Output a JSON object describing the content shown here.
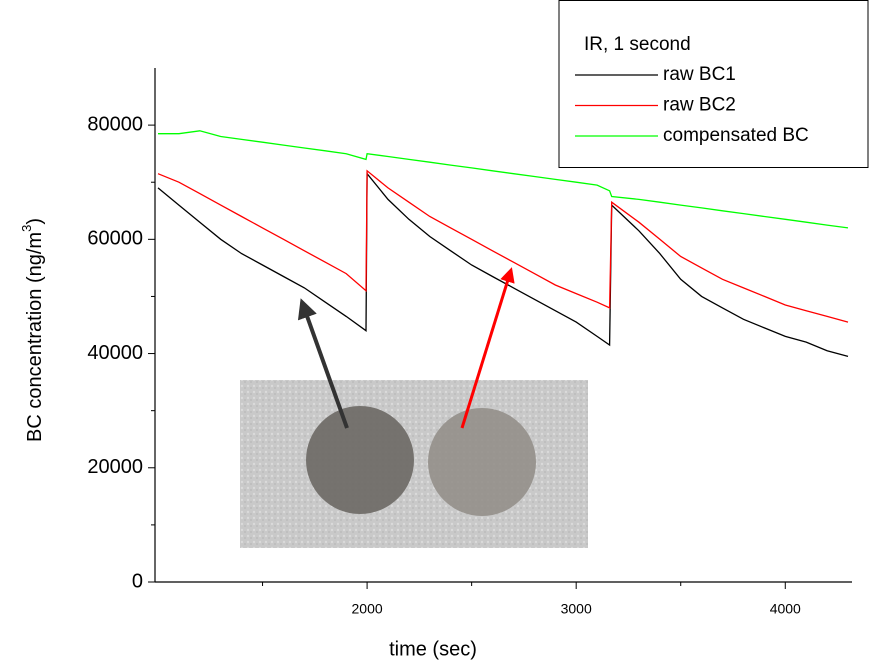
{
  "chart_data": {
    "type": "line",
    "x_label": "time (sec)",
    "y_label": {
      "text": "BC concentration (ng/m",
      "sup": "3",
      "end": ")"
    },
    "legend_title": "IR, 1 second",
    "legend": "top-right",
    "xlim": [
      1000,
      4300
    ],
    "ylim": [
      0,
      90000
    ],
    "xticks": [
      2000,
      3000,
      4000
    ],
    "xminorticks": [
      1500,
      2500,
      3500
    ],
    "yticks": [
      0,
      20000,
      40000,
      60000,
      80000
    ],
    "yminorticks": [
      10000,
      30000,
      50000,
      70000
    ],
    "x": [
      1000,
      1100,
      1200,
      1300,
      1400,
      1500,
      1600,
      1700,
      1800,
      1900,
      1995,
      2000,
      2100,
      2200,
      2300,
      2400,
      2500,
      2600,
      2700,
      2800,
      2900,
      3000,
      3100,
      3160,
      3170,
      3300,
      3400,
      3500,
      3600,
      3700,
      3800,
      3900,
      4000,
      4100,
      4200,
      4300
    ],
    "series": [
      {
        "name": "raw BC1",
        "color": "#000000",
        "values": [
          69000,
          66000,
          63000,
          60000,
          57500,
          55500,
          53500,
          51500,
          49000,
          46500,
          44000,
          71500,
          67000,
          63500,
          60500,
          58000,
          55500,
          53500,
          51500,
          49500,
          47500,
          45500,
          43000,
          41500,
          66000,
          61500,
          57500,
          53000,
          50000,
          48000,
          46000,
          44500,
          43000,
          42000,
          40500,
          39500
        ]
      },
      {
        "name": "raw BC2",
        "color": "#ff0000",
        "values": [
          71500,
          70000,
          68000,
          66000,
          64000,
          62000,
          60000,
          58000,
          56000,
          54000,
          51000,
          72000,
          69000,
          66500,
          64000,
          62000,
          60000,
          58000,
          56000,
          54000,
          52000,
          50500,
          49000,
          48000,
          66500,
          63000,
          60000,
          57000,
          55000,
          53000,
          51500,
          50000,
          48500,
          47500,
          46500,
          45500
        ]
      },
      {
        "name": "compensated BC",
        "color": "#00ff00",
        "values": [
          78500,
          78500,
          79000,
          78000,
          77500,
          77000,
          76500,
          76000,
          75500,
          75000,
          74000,
          75000,
          74500,
          74000,
          73500,
          73000,
          72500,
          72000,
          71500,
          71000,
          70500,
          70000,
          69500,
          68500,
          67500,
          67000,
          66500,
          66000,
          65500,
          65000,
          64500,
          64000,
          63500,
          63000,
          62500,
          62000
        ]
      }
    ]
  }
}
